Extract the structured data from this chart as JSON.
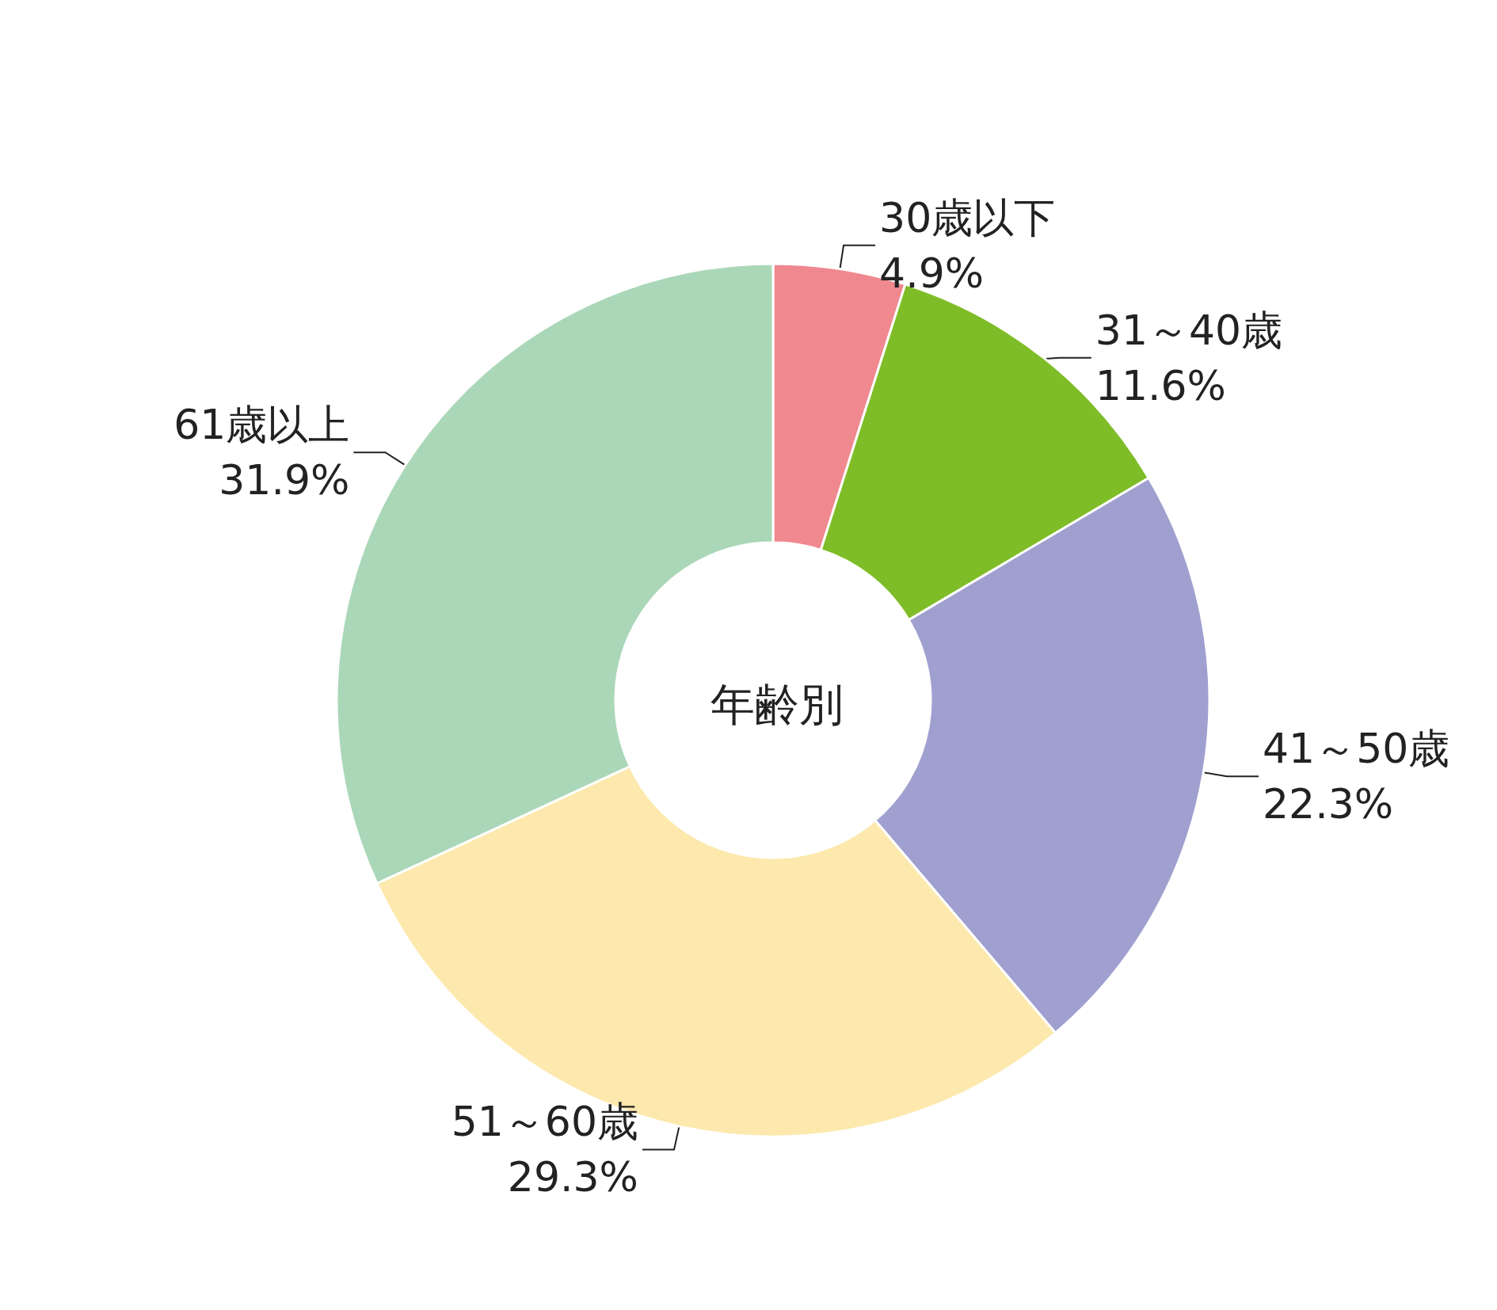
{
  "chart_data": {
    "type": "donut",
    "title": "年齢別",
    "categories": [
      "30歳以下",
      "31～40歳",
      "41～50歳",
      "51～60歳",
      "61歳以上"
    ],
    "values": [
      4.9,
      11.6,
      22.3,
      29.3,
      31.9
    ],
    "value_labels": [
      "4.9%",
      "11.6%",
      "22.3%",
      "29.3%",
      "31.9%"
    ],
    "colors": [
      "#f0888f",
      "#7fbd28",
      "#a0a0d0",
      "#fde9ad",
      "#abd7b9"
    ],
    "legend": false
  }
}
